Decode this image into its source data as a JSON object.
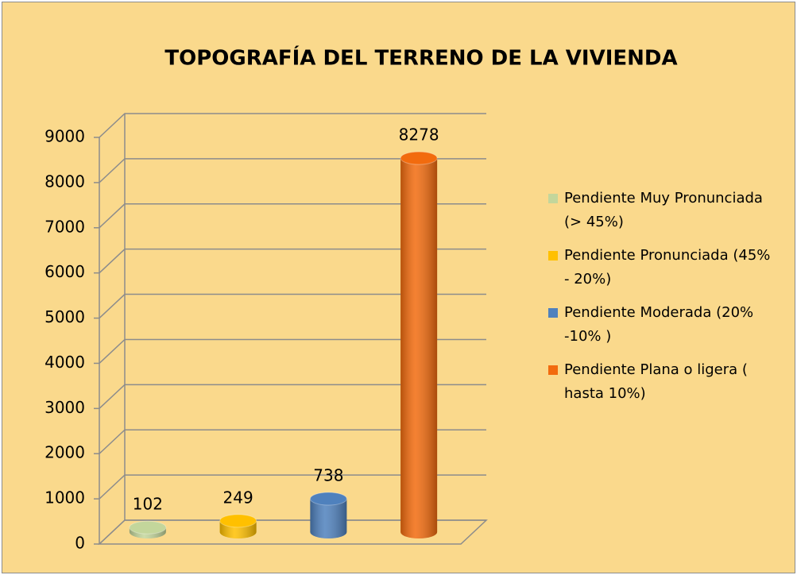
{
  "chart_data": {
    "type": "bar3d",
    "title": "TOPOGRAFÍA DEL TERRENO DE LA VIVIENDA",
    "series": [
      {
        "name": "Pendiente Muy Pronunciada (> 45%)",
        "color": "#c3d69b",
        "values": [
          102
        ]
      },
      {
        "name": "Pendiente Pronunciada (45% - 20%)",
        "color": "#ffc000",
        "values": [
          249
        ]
      },
      {
        "name": "Pendiente Moderada (20% -10% )",
        "color": "#4f81bd",
        "values": [
          738
        ]
      },
      {
        "name": "Pendiente Plana o ligera ( hasta 10%)",
        "color": "#f26b0e",
        "values": [
          8278
        ]
      }
    ],
    "ylim": [
      0,
      9000
    ],
    "yticks": [
      0,
      1000,
      2000,
      3000,
      4000,
      5000,
      6000,
      7000,
      8000,
      9000
    ],
    "grid": true,
    "legend": "right"
  }
}
